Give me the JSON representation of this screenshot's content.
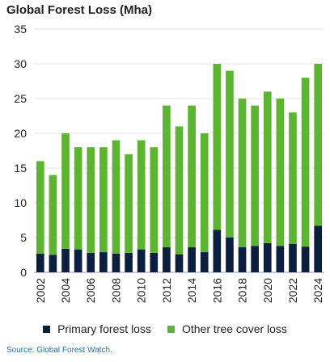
{
  "chart_data": {
    "type": "bar",
    "stacked": true,
    "title": "Global Forest Loss (Mha)",
    "xlabel": "",
    "ylabel": "",
    "ylim": [
      0,
      35
    ],
    "yticks": [
      0,
      5,
      10,
      15,
      20,
      25,
      30,
      35
    ],
    "categories": [
      "2002",
      "2003",
      "2004",
      "2005",
      "2006",
      "2007",
      "2008",
      "2009",
      "2010",
      "2011",
      "2012",
      "2013",
      "2014",
      "2015",
      "2016",
      "2017",
      "2018",
      "2019",
      "2020",
      "2021",
      "2022",
      "2023",
      "2024"
    ],
    "x_tick_labels": [
      "2002",
      "",
      "2004",
      "",
      "2006",
      "",
      "2008",
      "",
      "2010",
      "",
      "2012",
      "",
      "2014",
      "",
      "2016",
      "",
      "2018",
      "",
      "2020",
      "",
      "2022",
      "",
      "2024"
    ],
    "grid": true,
    "legend": "bottom",
    "series": [
      {
        "name": "Primary forest loss",
        "color": "#0d1f3f",
        "values": [
          2.7,
          2.5,
          3.4,
          3.3,
          2.8,
          2.9,
          2.7,
          2.8,
          3.3,
          2.8,
          3.6,
          2.6,
          3.6,
          2.9,
          6.1,
          5.0,
          3.6,
          3.8,
          4.2,
          3.8,
          4.1,
          3.7,
          6.7
        ]
      },
      {
        "name": "Other tree cover loss",
        "color": "#5cb531",
        "values": [
          13.3,
          11.5,
          16.6,
          14.7,
          15.2,
          15.1,
          16.3,
          14.2,
          15.7,
          15.2,
          20.4,
          18.4,
          20.4,
          17.1,
          23.9,
          24.0,
          21.4,
          20.2,
          21.8,
          21.2,
          18.9,
          24.3,
          23.3
        ]
      }
    ]
  },
  "source": "Source: Global Forest Watch."
}
